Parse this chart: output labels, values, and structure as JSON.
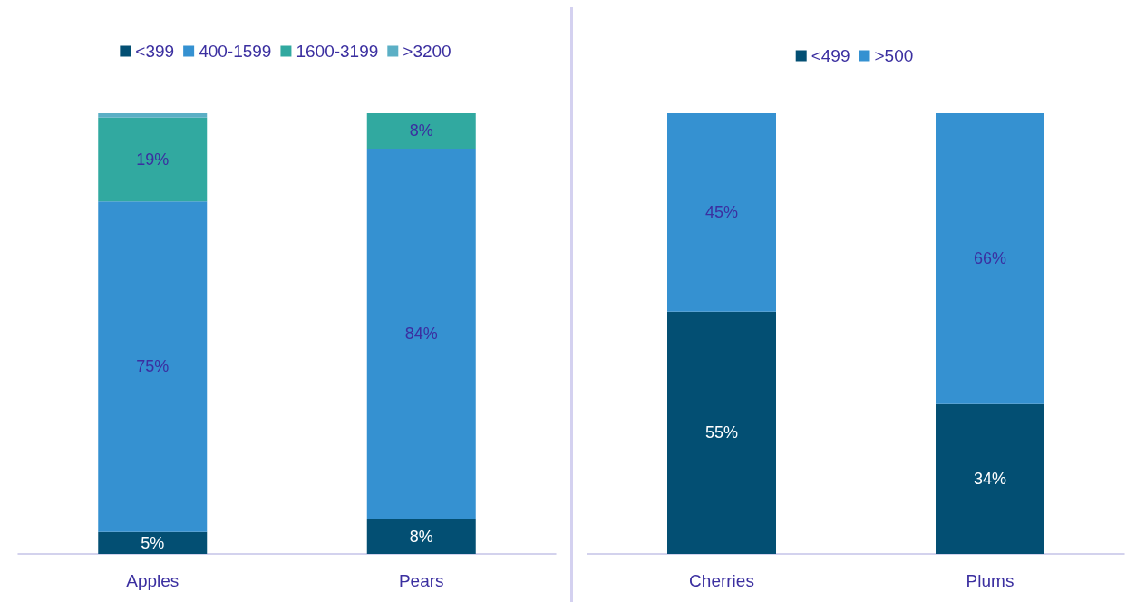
{
  "chart_data": [
    {
      "type": "bar",
      "stacked": true,
      "categories": [
        "Apples",
        "Pears"
      ],
      "ylim": [
        0,
        100
      ],
      "tick_labels": "x",
      "legend": "top",
      "series": [
        {
          "name": "<399",
          "color": "#034f73",
          "values": [
            5,
            8
          ],
          "value_labels": [
            "5%",
            "8%"
          ]
        },
        {
          "name": "400-1599",
          "color": "#3591d1",
          "values": [
            75,
            84
          ],
          "value_labels": [
            "75%",
            "84%"
          ]
        },
        {
          "name": "1600-3199",
          "color": "#31a9a0",
          "values": [
            19,
            8
          ],
          "value_labels": [
            "19%",
            "8%"
          ]
        },
        {
          "name": ">3200",
          "color": "#5bafc5",
          "values": [
            1,
            null
          ],
          "value_labels": [
            null,
            null
          ]
        }
      ]
    },
    {
      "type": "bar",
      "stacked": true,
      "categories": [
        "Cherries",
        "Plums"
      ],
      "ylim": [
        0,
        100
      ],
      "tick_labels": "x",
      "legend": "top",
      "series": [
        {
          "name": "<499",
          "color": "#034f73",
          "values": [
            55,
            34
          ],
          "value_labels": [
            "55%",
            "34%"
          ]
        },
        {
          "name": ">500",
          "color": "#3591d1",
          "values": [
            45,
            66
          ],
          "value_labels": [
            "45%",
            "66%"
          ]
        }
      ]
    }
  ]
}
